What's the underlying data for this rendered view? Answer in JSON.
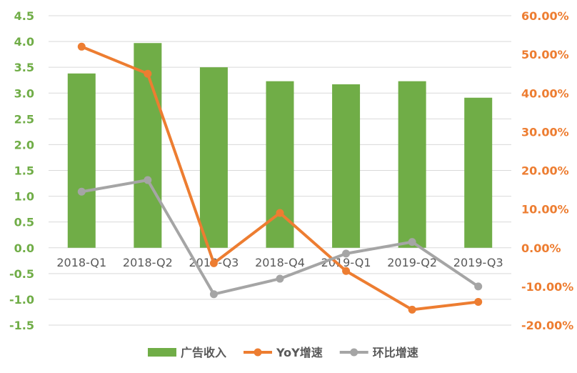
{
  "chart_data": {
    "type": "bar+line",
    "categories": [
      "2018-Q1",
      "2018-Q2",
      "2018-Q3",
      "2018-Q4",
      "2019-Q1",
      "2019-Q2",
      "2019-Q3"
    ],
    "bar_series": {
      "name": "广告收入",
      "color": "#70ad47",
      "values": [
        3.38,
        3.97,
        3.5,
        3.23,
        3.17,
        3.23,
        2.91
      ]
    },
    "line_series": [
      {
        "name": "YoY增速",
        "color": "#ed7d31",
        "values": [
          52.0,
          45.0,
          -4.0,
          9.0,
          -6.0,
          -16.0,
          -14.0
        ]
      },
      {
        "name": "环比增速",
        "color": "#a5a5a5",
        "values": [
          14.5,
          17.5,
          -12.0,
          -8.0,
          -1.5,
          1.5,
          -10.0
        ]
      }
    ],
    "left_axis": {
      "ylim": [
        -1.5,
        4.5
      ],
      "ticks": [
        "-1.5",
        "-1.0",
        "-0.5",
        "0.0",
        "0.5",
        "1.0",
        "1.5",
        "2.0",
        "2.5",
        "3.0",
        "3.5",
        "4.0",
        "4.5"
      ]
    },
    "right_axis": {
      "ylim": [
        -20,
        60
      ],
      "ticks": [
        "-20.00%",
        "-10.00%",
        "0.00%",
        "10.00%",
        "20.00%",
        "30.00%",
        "40.00%",
        "50.00%",
        "60.00%"
      ]
    },
    "grid": true,
    "legend_position": "bottom",
    "title": "",
    "xlabel": "",
    "ylabel": ""
  }
}
